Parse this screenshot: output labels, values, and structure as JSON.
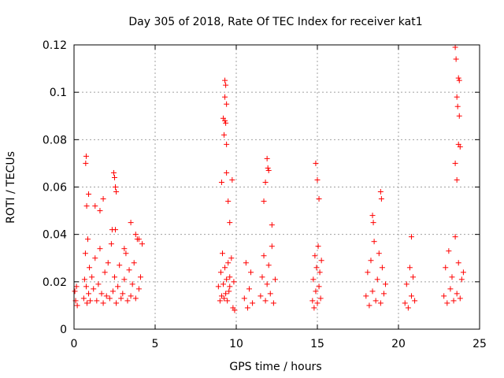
{
  "chart_data": {
    "type": "scatter",
    "title": "Day 305 of 2018, Rate Of TEC Index for receiver kat1",
    "xlabel": "GPS time / hours",
    "ylabel": "ROTI / TECUs",
    "xlim": [
      0,
      25
    ],
    "ylim": [
      0,
      0.12
    ],
    "xticks": [
      0,
      5,
      10,
      15,
      20,
      25
    ],
    "yticks": [
      0,
      0.02,
      0.04,
      0.06,
      0.08,
      0.1,
      0.12
    ],
    "xtick_labels": [
      "0",
      "5",
      "10",
      "15",
      "20",
      "25"
    ],
    "ytick_labels": [
      "0",
      "0.02",
      "0.04",
      "0.06",
      "0.08",
      "0.1",
      "0.12"
    ],
    "grid": true,
    "marker": "plus",
    "color": "#ff0000",
    "series": [
      {
        "x": [
          0.05,
          0.1,
          0.15,
          0.2,
          0.6,
          0.65,
          0.7,
          0.75,
          0.8,
          0.85,
          0.9,
          0.95,
          1.0,
          1.1,
          1.2,
          1.3,
          1.4,
          1.5,
          1.6,
          1.7,
          1.8,
          1.9,
          2.0,
          2.1,
          2.2,
          2.3,
          2.4,
          2.5,
          2.55,
          2.6,
          2.7,
          2.8,
          2.9,
          3.0,
          3.1,
          3.2,
          3.3,
          3.4,
          3.5,
          3.6,
          3.7,
          3.8,
          3.9,
          4.0,
          4.1,
          4.2,
          0.72,
          0.75,
          0.78,
          0.9,
          1.3,
          1.6,
          1.8,
          2.45,
          2.5,
          2.55,
          2.6,
          2.35,
          3.1,
          3.5,
          3.8,
          4.0
        ],
        "y": [
          0.016,
          0.012,
          0.018,
          0.01,
          0.013,
          0.021,
          0.032,
          0.018,
          0.011,
          0.038,
          0.015,
          0.026,
          0.012,
          0.022,
          0.017,
          0.03,
          0.012,
          0.019,
          0.034,
          0.015,
          0.011,
          0.024,
          0.014,
          0.028,
          0.013,
          0.036,
          0.016,
          0.022,
          0.042,
          0.011,
          0.018,
          0.027,
          0.013,
          0.015,
          0.021,
          0.032,
          0.012,
          0.025,
          0.014,
          0.019,
          0.028,
          0.013,
          0.038,
          0.017,
          0.022,
          0.036,
          0.07,
          0.073,
          0.052,
          0.057,
          0.052,
          0.05,
          0.055,
          0.066,
          0.064,
          0.06,
          0.058,
          0.042,
          0.034,
          0.045,
          0.04,
          0.038
        ]
      },
      {
        "x": [
          8.9,
          9.0,
          9.05,
          9.1,
          9.15,
          9.2,
          9.25,
          9.3,
          9.35,
          9.4,
          9.45,
          9.5,
          9.55,
          9.6,
          9.3,
          9.35,
          9.3,
          9.4,
          9.2,
          9.3,
          9.35,
          9.25,
          9.4,
          9.1,
          9.4,
          9.5,
          9.6,
          9.6,
          9.7,
          9.75,
          9.8,
          9.85,
          9.9
        ],
        "y": [
          0.018,
          0.012,
          0.024,
          0.014,
          0.032,
          0.019,
          0.013,
          0.026,
          0.015,
          0.021,
          0.012,
          0.028,
          0.016,
          0.022,
          0.105,
          0.103,
          0.098,
          0.095,
          0.089,
          0.088,
          0.087,
          0.082,
          0.078,
          0.062,
          0.066,
          0.054,
          0.045,
          0.018,
          0.03,
          0.063,
          0.009,
          0.02,
          0.008
        ]
      },
      {
        "x": [
          10.5,
          10.6,
          10.7,
          10.8,
          10.9,
          11.0,
          11.5,
          11.6,
          11.7,
          11.8,
          11.9,
          12.0,
          12.1,
          12.2,
          12.3,
          12.4,
          11.9,
          11.95,
          12.0,
          11.8,
          11.7,
          12.2
        ],
        "y": [
          0.013,
          0.028,
          0.009,
          0.017,
          0.024,
          0.011,
          0.014,
          0.022,
          0.031,
          0.012,
          0.019,
          0.027,
          0.015,
          0.035,
          0.011,
          0.021,
          0.072,
          0.068,
          0.067,
          0.062,
          0.054,
          0.044
        ]
      },
      {
        "x": [
          14.7,
          14.75,
          14.8,
          14.85,
          14.9,
          14.95,
          15.0,
          15.05,
          15.1,
          15.15,
          15.2,
          15.25,
          14.9,
          15.0,
          15.1
        ],
        "y": [
          0.012,
          0.021,
          0.009,
          0.031,
          0.016,
          0.026,
          0.011,
          0.035,
          0.018,
          0.024,
          0.013,
          0.029,
          0.07,
          0.063,
          0.055
        ]
      },
      {
        "x": [
          18.0,
          18.1,
          18.2,
          18.3,
          18.4,
          18.5,
          18.6,
          18.7,
          18.8,
          18.9,
          19.0,
          19.1,
          19.2,
          18.4,
          18.45,
          18.9,
          18.95
        ],
        "y": [
          0.014,
          0.024,
          0.01,
          0.029,
          0.016,
          0.037,
          0.012,
          0.021,
          0.032,
          0.011,
          0.026,
          0.015,
          0.019,
          0.048,
          0.045,
          0.058,
          0.055
        ]
      },
      {
        "x": [
          20.4,
          20.5,
          20.6,
          20.7,
          20.8,
          20.9,
          21.0,
          20.8
        ],
        "y": [
          0.011,
          0.019,
          0.009,
          0.026,
          0.014,
          0.022,
          0.012,
          0.039
        ]
      },
      {
        "x": [
          22.8,
          22.9,
          23.0,
          23.1,
          23.2,
          23.3,
          23.4,
          23.5,
          23.6,
          23.7,
          23.8,
          23.9,
          24.0,
          23.5,
          23.55,
          23.7,
          23.75,
          23.6,
          23.65,
          23.8,
          23.7,
          23.75,
          23.5,
          23.6
        ],
        "y": [
          0.014,
          0.026,
          0.011,
          0.033,
          0.017,
          0.022,
          0.012,
          0.039,
          0.015,
          0.028,
          0.013,
          0.021,
          0.024,
          0.119,
          0.114,
          0.106,
          0.105,
          0.098,
          0.094,
          0.077,
          0.078,
          0.09,
          0.07,
          0.063
        ]
      }
    ]
  }
}
